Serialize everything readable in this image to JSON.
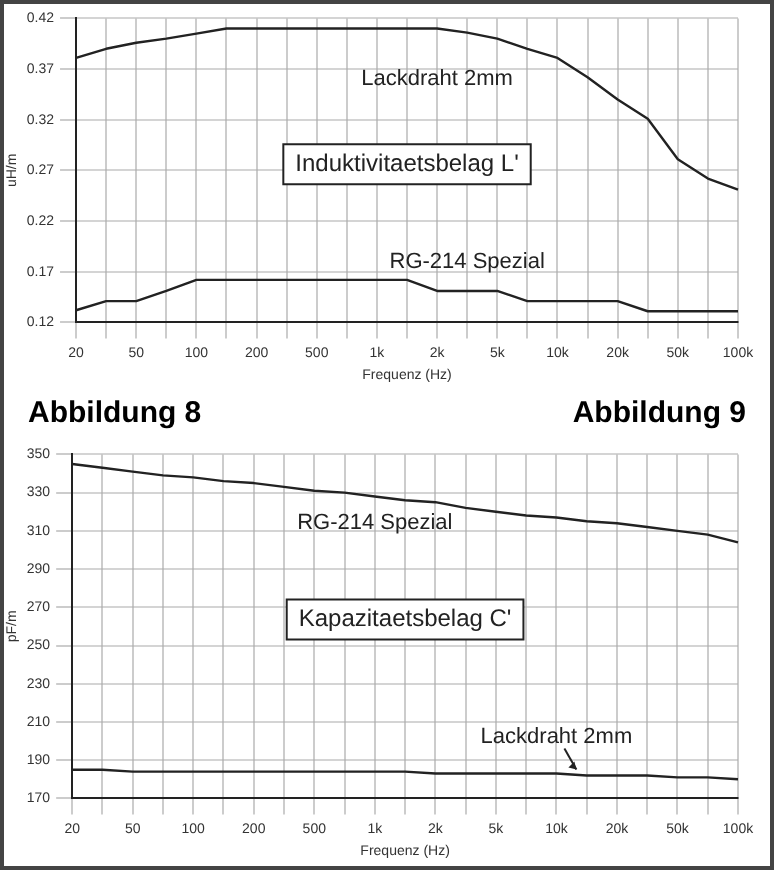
{
  "chart_data": [
    {
      "type": "line",
      "title": "Induktivitaetsbelag L'",
      "xlabel": "Frequenz (Hz)",
      "ylabel": "uH/m",
      "categories": [
        "20",
        null,
        "50",
        null,
        "100",
        null,
        "200",
        null,
        "500",
        null,
        "1k",
        null,
        "2k",
        null,
        "5k",
        null,
        "10k",
        null,
        "20k",
        null,
        "50k",
        null,
        "100k"
      ],
      "series": [
        {
          "name": "Lackdraht 2mm",
          "color": "#222222",
          "values": [
            0.381,
            0.39,
            0.396,
            0.4,
            0.405,
            0.41,
            0.41,
            0.41,
            0.41,
            0.41,
            0.41,
            0.41,
            0.41,
            0.406,
            0.4,
            0.39,
            0.381,
            0.362,
            0.34,
            0.321,
            0.281,
            0.262,
            0.251
          ]
        },
        {
          "name": "RG-214 Spezial",
          "color": "#222222",
          "values": [
            0.132,
            0.141,
            0.141,
            0.151,
            0.162,
            0.162,
            0.162,
            0.162,
            0.162,
            0.162,
            0.162,
            0.162,
            0.151,
            0.151,
            0.151,
            0.141,
            0.141,
            0.141,
            0.141,
            0.131,
            0.131,
            0.131,
            0.131
          ]
        }
      ],
      "ylim": [
        0.12,
        0.42
      ],
      "yticks": [
        0.12,
        0.17,
        0.22,
        0.27,
        0.32,
        0.37,
        0.42
      ],
      "grid": true,
      "legend": false,
      "marker": "none",
      "line_style": "solid",
      "annotations": [
        "Abbildung 8"
      ]
    },
    {
      "type": "line",
      "title": "Kapazitaetsbelag C'",
      "xlabel": "Frequenz (Hz)",
      "ylabel": "pF/m",
      "categories": [
        "20",
        null,
        "50",
        null,
        "100",
        null,
        "200",
        null,
        "500",
        null,
        "1k",
        null,
        "2k",
        null,
        "5k",
        null,
        "10k",
        null,
        "20k",
        null,
        "50k",
        null,
        "100k"
      ],
      "series": [
        {
          "name": "RG-214 Spezial",
          "color": "#222222",
          "values": [
            345,
            343,
            341,
            339,
            338,
            336,
            335,
            333,
            331,
            330,
            328,
            326,
            325,
            322,
            320,
            318,
            317,
            315,
            314,
            312,
            310,
            308,
            304
          ]
        },
        {
          "name": "Lackdraht 2mm",
          "color": "#222222",
          "values": [
            185,
            185,
            184,
            184,
            184,
            184,
            184,
            184,
            184,
            184,
            184,
            184,
            183,
            183,
            183,
            183,
            183,
            182,
            182,
            182,
            181,
            181,
            180
          ]
        }
      ],
      "ylim": [
        170,
        350
      ],
      "yticks": [
        170,
        190,
        210,
        230,
        250,
        270,
        290,
        310,
        330,
        350
      ],
      "grid": true,
      "legend": false,
      "marker": "none",
      "line_style": "solid",
      "annotations": [
        "Abbildung 9"
      ]
    }
  ]
}
